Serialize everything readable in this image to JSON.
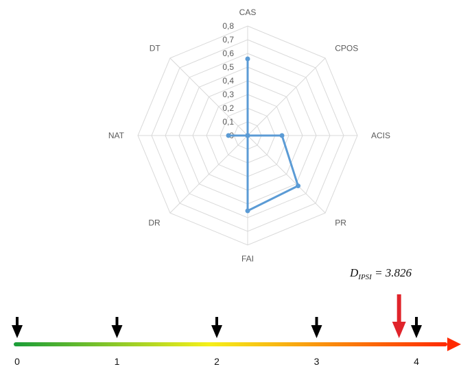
{
  "chart_data": [
    {
      "type": "radar",
      "axes": [
        "CAS",
        "CPOS",
        "ACIS",
        "PR",
        "FAI",
        "DR",
        "NAT",
        "DT"
      ],
      "tick_labels": [
        "0",
        "0,1",
        "0,2",
        "0,3",
        "0,4",
        "0,5",
        "0,6",
        "0,7",
        "0,8"
      ],
      "rlim": [
        0,
        0.8
      ],
      "grid": true,
      "series": [
        {
          "values": [
            0.56,
            0.0,
            0.25,
            0.52,
            0.55,
            0.0,
            0.14,
            0.0
          ]
        }
      ],
      "colors": {
        "series": "#5B9BD5",
        "grid": "#d9d9d9"
      }
    },
    {
      "type": "scale",
      "ticks": [
        "0",
        "1",
        "2",
        "3",
        "4"
      ],
      "xlim": [
        0,
        4.5
      ],
      "marker": {
        "label_main": "D",
        "label_sub": "IPSI",
        "label_value": " = 3.826",
        "value": 3.826
      },
      "colors": {
        "gradient": [
          "#1a9d38",
          "#f5f01a",
          "#ff2a00"
        ],
        "marker": "#e0242b",
        "tick_arrow": "#000000"
      }
    }
  ]
}
